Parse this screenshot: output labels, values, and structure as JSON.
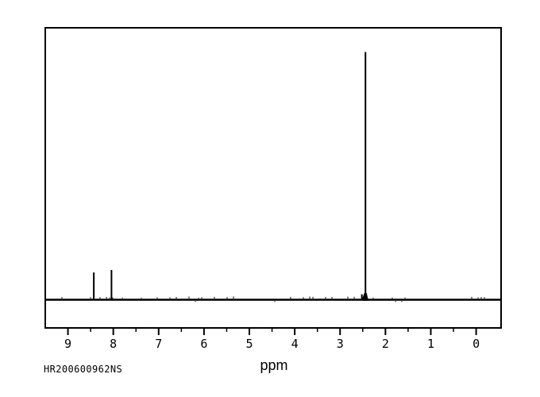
{
  "colors": {
    "background": "#ffffff",
    "ink": "#000000"
  },
  "chart_data": {
    "type": "line",
    "description": "NMR spectrum trace: flat baseline with sharp vertical peaks",
    "xlabel": "ppm",
    "ylabel": "",
    "xlim": [
      9.5,
      -0.55
    ],
    "x_axis_reversed": true,
    "grid": false,
    "legend": false,
    "x_ticks_major": [
      9,
      8,
      7,
      6,
      5,
      4,
      3,
      2,
      1,
      0
    ],
    "x_ticks_minor": [
      8.5,
      7.5,
      6.5,
      5.5,
      4.5,
      3.5,
      2.5,
      1.5,
      0.5
    ],
    "baseline_intensity": 0.0,
    "peaks": [
      {
        "ppm": 8.43,
        "intensity": 0.11
      },
      {
        "ppm": 8.04,
        "intensity": 0.12
      },
      {
        "ppm": 2.52,
        "intensity": 0.022
      },
      {
        "ppm": 2.44,
        "intensity": 1.0,
        "foot": true
      }
    ]
  },
  "annotations": {
    "sample_id": "HR200600962NS"
  }
}
